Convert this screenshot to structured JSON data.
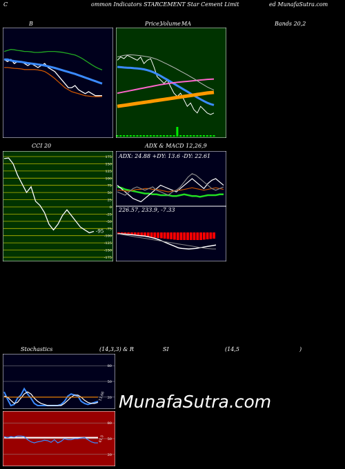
{
  "header": {
    "left": "C",
    "mid": "ommon  Indicators STARCEMENT Star Cement Limit",
    "right": "ed MunafaSutra.com"
  },
  "titles": {
    "b": "B",
    "price_a": "Price,",
    "price_b": "Volume",
    "price_c": "MA",
    "bands": "Bands 20,2",
    "cci": "CCI 20",
    "adx": "ADX  & MACD 12,26,9",
    "stoch": "Stochastics",
    "stoch_params": "(14,3,3) & R",
    "rsi": "SI",
    "rsi_params": "(14,5",
    "rsi_close": ")"
  },
  "watermark": "MunafaSutra.com",
  "colors": {
    "panel_bg": "#00001c",
    "price_bg": "#003300",
    "cci_bg": "#003300",
    "rsi_bg": "#990000",
    "blue": "#3b8bff",
    "orange": "#ff8c00",
    "green": "#22cc22",
    "pink": "#ff66cc"
  },
  "chart_data": [
    {
      "id": "bollinger",
      "type": "line",
      "title": "B",
      "series": [
        {
          "color": "#ffffff",
          "values": [
            88,
            87,
            88,
            86,
            87,
            87,
            86,
            85,
            86,
            85,
            84,
            85,
            86,
            84,
            83,
            82,
            80,
            78,
            76,
            74,
            74,
            75,
            73,
            72,
            71,
            72,
            71,
            70,
            70,
            70
          ]
        },
        {
          "color": "#3b8bff",
          "values": [
            88,
            88,
            87.5,
            87.2,
            87,
            86.8,
            86.5,
            86.2,
            86,
            85.8,
            85.5,
            85.3,
            85,
            84.6,
            84.2,
            83.8,
            83.3,
            82.8,
            82.3,
            81.8,
            81.3,
            80.8,
            80.2,
            79.6,
            79,
            78.4,
            77.8,
            77.2,
            76.6,
            76
          ]
        },
        {
          "color": "#22aa22",
          "values": [
            92,
            92.5,
            93,
            92.8,
            92.5,
            92.3,
            92,
            92,
            91.8,
            91.5,
            91.5,
            91.6,
            91.8,
            92,
            92,
            92,
            91.8,
            91.6,
            91.3,
            91,
            90.6,
            90.2,
            89.5,
            88.6,
            87.5,
            86.4,
            85.3,
            84.3,
            83.5,
            82.8
          ]
        },
        {
          "color": "#cc5500",
          "values": [
            84,
            84,
            83.8,
            83.6,
            83.5,
            83.3,
            83,
            83,
            83,
            83,
            82.8,
            82.5,
            82,
            81,
            79.8,
            78.5,
            77,
            75.5,
            74,
            73,
            72,
            71.5,
            71,
            70.5,
            70,
            69.8,
            69.6,
            69.5,
            69.5,
            69.6
          ]
        }
      ]
    },
    {
      "id": "price_volume_ma",
      "type": "line",
      "title": "Price, Volume MA",
      "series": [
        {
          "color": "#ffffff",
          "values": [
            90,
            92,
            91,
            93,
            92,
            91,
            90,
            92,
            88,
            90,
            91,
            86,
            80,
            78,
            76,
            78,
            74,
            70,
            68,
            70,
            66,
            62,
            64,
            60,
            58,
            62,
            60,
            58,
            57,
            58
          ]
        },
        {
          "color": "#3b8bff",
          "values": [
            86,
            85.8,
            85.6,
            85.5,
            85.4,
            85.2,
            85,
            84.8,
            84.5,
            84,
            83.4,
            82.6,
            81.6,
            80.5,
            79.3,
            78.2,
            77,
            75.8,
            74.6,
            73.4,
            72.2,
            71,
            69.8,
            68.6,
            67.4,
            66.3,
            65.2,
            64.2,
            63.4,
            62.8
          ]
        },
        {
          "color": "#ff66cc",
          "values": [
            70,
            70.4,
            70.8,
            71.2,
            71.6,
            72,
            72.4,
            72.8,
            73.2,
            73.6,
            74,
            74.4,
            74.8,
            75.2,
            75.5,
            75.8,
            76.1,
            76.4,
            76.6,
            76.8,
            77,
            77.2,
            77.4,
            77.6,
            77.8,
            78,
            78.2,
            78.4,
            78.5,
            78.6
          ]
        },
        {
          "color": "#ff9900",
          "values": [
            62,
            62.3,
            62.6,
            62.9,
            63.2,
            63.5,
            63.8,
            64.1,
            64.4,
            64.7,
            65,
            65.3,
            65.6,
            65.9,
            66.2,
            66.5,
            66.8,
            67.1,
            67.4,
            67.7,
            68,
            68.3,
            68.6,
            68.9,
            69.2,
            69.5,
            69.8,
            70.1,
            70.3,
            70.5
          ]
        },
        {
          "color": "#bbbbbb",
          "values": [
            92,
            92.5,
            93,
            93.2,
            93.3,
            93.2,
            93,
            92.8,
            92.5,
            92.2,
            91.8,
            91.2,
            90.5,
            89.6,
            88.6,
            87.6,
            86.6,
            85.6,
            84.5,
            83.4,
            82.3,
            81.2,
            80,
            78.8,
            77.5,
            76.2,
            75,
            73.8,
            72.8,
            72
          ]
        }
      ],
      "volume": [
        0,
        0,
        0,
        0,
        0,
        0,
        0,
        0,
        0,
        0,
        0,
        0,
        0,
        0,
        0,
        0,
        0,
        0,
        1,
        0,
        0,
        0,
        0,
        0,
        0,
        0,
        0,
        0,
        0,
        0
      ]
    },
    {
      "id": "cci",
      "type": "line",
      "title": "CCI 20",
      "ylim": [
        -175,
        175
      ],
      "ticks": [
        175,
        150,
        125,
        100,
        75,
        50,
        25,
        0,
        -25,
        -50,
        -75,
        -100,
        -125,
        -150,
        -175
      ],
      "tick_labels": [
        "175",
        "150",
        "125",
        "100",
        "75",
        "50",
        "25",
        "0",
        "-25",
        "-50",
        "-75",
        "-100",
        "-125",
        "-150",
        "-175"
      ],
      "values": [
        168,
        170,
        150,
        110,
        80,
        50,
        70,
        20,
        5,
        -20,
        -60,
        -80,
        -60,
        -30,
        -10,
        -30,
        -50,
        -70,
        -80,
        -90,
        -85
      ],
      "value_label": "-95"
    },
    {
      "id": "adx",
      "type": "line",
      "title": "ADX & MACD 12,26,9",
      "readout": "ADX: 24.88  +DY: 13.6  -DY: 22.61",
      "series": [
        {
          "color": "#22dd22",
          "values": [
            28,
            27,
            25,
            24,
            23,
            22,
            21,
            20,
            20,
            19,
            19,
            18,
            18,
            18,
            17,
            17,
            18,
            19,
            18,
            17,
            17,
            16,
            17,
            18,
            18,
            18,
            19,
            19
          ]
        },
        {
          "color": "#ffffff",
          "values": [
            30,
            26,
            22,
            18,
            14,
            12,
            10,
            14,
            18,
            22,
            26,
            30,
            28,
            26,
            24,
            22,
            26,
            30,
            34,
            38,
            34,
            30,
            26,
            32,
            36,
            38,
            34,
            30
          ]
        },
        {
          "color": "#cc5500",
          "values": [
            24,
            24,
            23,
            23,
            24,
            25,
            25,
            26,
            26,
            25,
            25,
            24,
            23,
            22,
            23,
            24,
            24,
            25,
            26,
            27,
            26,
            25,
            24,
            25,
            26,
            27,
            26,
            25
          ]
        },
        {
          "color": "#888888",
          "values": [
            22,
            20,
            18,
            22,
            26,
            28,
            26,
            24,
            26,
            28,
            24,
            22,
            20,
            18,
            22,
            24,
            28,
            34,
            40,
            44,
            42,
            38,
            34,
            30,
            26,
            24,
            26,
            28
          ]
        }
      ]
    },
    {
      "id": "macd",
      "type": "bar",
      "readout": "226.57,  233.9,  -7.33",
      "histogram": [
        -2,
        -2.5,
        -3,
        -3.5,
        -4,
        -4.5,
        -5,
        -5.5,
        -6,
        -6.5,
        -7,
        -7.5,
        -8,
        -8.5,
        -9,
        -9.5,
        -10,
        -10.5,
        -11,
        -11,
        -11,
        -11,
        -11,
        -11,
        -11,
        -11,
        -10.5,
        -10,
        -9.5,
        -9
      ],
      "series": [
        {
          "color": "#ffffff",
          "values": [
            6,
            6,
            6.2,
            6.4,
            6.6,
            6.8,
            7.2,
            7.4,
            7.6,
            8,
            8.6,
            9.2,
            10,
            11,
            12,
            13,
            14,
            15,
            16,
            16.4,
            16.6,
            16.8,
            16.6,
            16.4,
            16,
            15.6,
            15.2,
            14.8,
            14.4,
            14
          ]
        },
        {
          "color": "#888888",
          "values": [
            6,
            6.4,
            6.8,
            7.2,
            7.6,
            8,
            8.4,
            8.8,
            9.2,
            9.6,
            10,
            10.4,
            10.8,
            11.2,
            11.6,
            12,
            12.4,
            12.8,
            13.2,
            13.6,
            14,
            14.4,
            14.8,
            15.2,
            15.6,
            16,
            16.4,
            16.6,
            16.8,
            16.8
          ]
        }
      ]
    },
    {
      "id": "stochastics",
      "type": "line",
      "title": "Stochastics (14,3,3)",
      "ylim": [
        0,
        100
      ],
      "ticks": [
        80,
        50,
        20
      ],
      "tick_labels": [
        "80",
        "50",
        "20"
      ],
      "value_label": "13.66",
      "series": [
        {
          "color": "#3b8bff",
          "values": [
            30,
            16,
            4,
            6,
            18,
            24,
            36,
            26,
            18,
            8,
            4,
            4,
            4,
            4,
            4,
            4,
            4,
            6,
            12,
            22,
            26,
            24,
            22,
            12,
            8,
            6,
            8,
            10,
            12
          ]
        },
        {
          "color": "#ffffff",
          "values": [
            22,
            20,
            14,
            8,
            10,
            18,
            26,
            30,
            26,
            18,
            12,
            8,
            6,
            4,
            4,
            4,
            4,
            4,
            8,
            14,
            20,
            24,
            24,
            20,
            14,
            10,
            8,
            8,
            10
          ]
        },
        {
          "color": "#ff8c00",
          "values": [
            20,
            20,
            20,
            20,
            20,
            20,
            20,
            20,
            20,
            20,
            20,
            20,
            20,
            20,
            20,
            20,
            20,
            20,
            20,
            20,
            20,
            20,
            20,
            20,
            20,
            20,
            20,
            20,
            20
          ]
        }
      ]
    },
    {
      "id": "rsi",
      "type": "line",
      "title": "RSI (14,5)",
      "ylim": [
        0,
        100
      ],
      "ticks": [
        80,
        50,
        20
      ],
      "tick_labels": [
        "80",
        "50",
        "20"
      ],
      "value_label": "41.5",
      "series": [
        {
          "color": "#ffffff",
          "values": [
            52,
            52,
            52,
            52,
            52,
            52,
            52,
            52,
            52,
            52,
            52,
            52,
            52,
            52,
            52,
            52,
            52,
            52,
            52,
            52,
            52,
            52,
            52,
            52,
            52,
            52,
            52,
            52,
            52
          ]
        },
        {
          "color": "#3b8bff",
          "values": [
            54,
            52,
            54,
            53,
            55,
            55,
            54,
            48,
            44,
            42,
            44,
            45,
            47,
            46,
            43,
            48,
            42,
            45,
            50,
            48,
            48,
            50,
            50,
            51,
            52,
            48,
            44,
            42,
            42
          ]
        }
      ]
    }
  ]
}
